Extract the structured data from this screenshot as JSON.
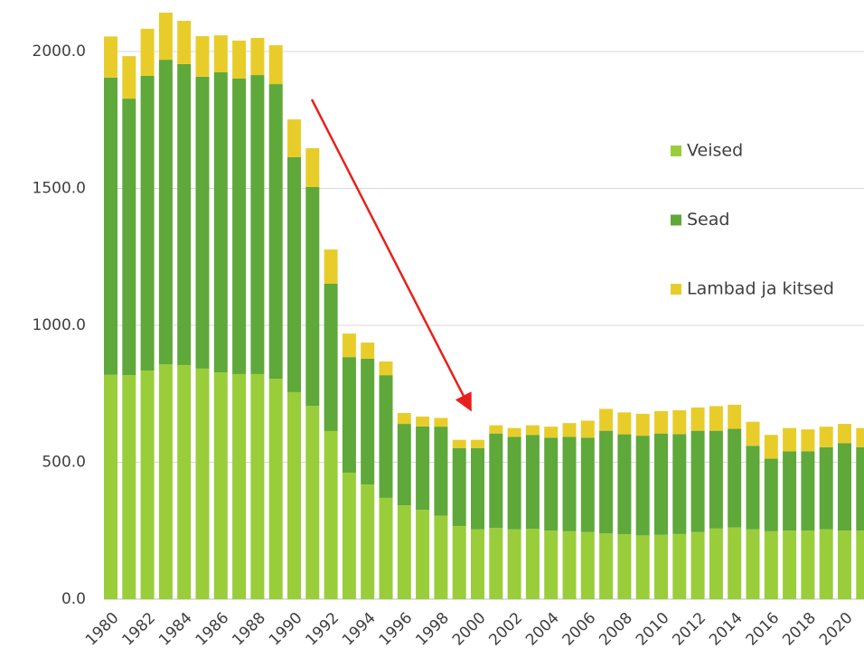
{
  "chart_data": {
    "type": "stacked_bar",
    "categories": [
      "1980",
      null,
      "1982",
      null,
      "1984",
      null,
      "1986",
      null,
      "1988",
      null,
      "1990",
      null,
      "1992",
      null,
      "1994",
      null,
      "1996",
      null,
      "1998",
      null,
      "2000",
      null,
      "2002",
      null,
      "2004",
      null,
      "2006",
      null,
      "2008",
      null,
      "2010",
      null,
      "2012",
      null,
      "2014",
      null,
      "2016",
      null,
      "2018",
      null,
      "2020",
      null
    ],
    "series": [
      {
        "name": "Veised",
        "color": "#9acd3a",
        "values": [
          820,
          818,
          835,
          858,
          855,
          842,
          828,
          822,
          822,
          805,
          756,
          706,
          614,
          462,
          419,
          370,
          343,
          326,
          305,
          267,
          255,
          260,
          255,
          257,
          250,
          248,
          245,
          240,
          237,
          233,
          235,
          238,
          245,
          258,
          262,
          255,
          248,
          250,
          250,
          255,
          250,
          250
        ]
      },
      {
        "name": "Sead",
        "color": "#5fa83a",
        "values": [
          1085,
          1010,
          1076,
          1112,
          1099,
          1066,
          1096,
          1079,
          1092,
          1076,
          858,
          799,
          538,
          422,
          459,
          448,
          297,
          305,
          325,
          285,
          297,
          345,
          338,
          343,
          340,
          345,
          345,
          375,
          365,
          364,
          370,
          365,
          370,
          357,
          360,
          305,
          265,
          290,
          290,
          300,
          320,
          305
        ]
      },
      {
        "name": "Lambad ja kitsed",
        "color": "#e8cd2a",
        "values": [
          150,
          155,
          172,
          172,
          158,
          148,
          135,
          139,
          136,
          142,
          138,
          142,
          125,
          86,
          59,
          50,
          40,
          36,
          32,
          30,
          30,
          30,
          32,
          35,
          40,
          50,
          62,
          80,
          80,
          80,
          82,
          87,
          85,
          90,
          88,
          88,
          87,
          85,
          80,
          75,
          70,
          70
        ]
      }
    ],
    "ylim": [
      0,
      2200
    ],
    "yticks": [
      {
        "value": 0,
        "label": "0.0"
      },
      {
        "value": 500,
        "label": "500.0"
      },
      {
        "value": 1000,
        "label": "1000.0"
      },
      {
        "value": 1500,
        "label": "1500.0"
      },
      {
        "value": 2000,
        "label": "2000.0"
      }
    ],
    "grid": true,
    "legend": "right"
  }
}
